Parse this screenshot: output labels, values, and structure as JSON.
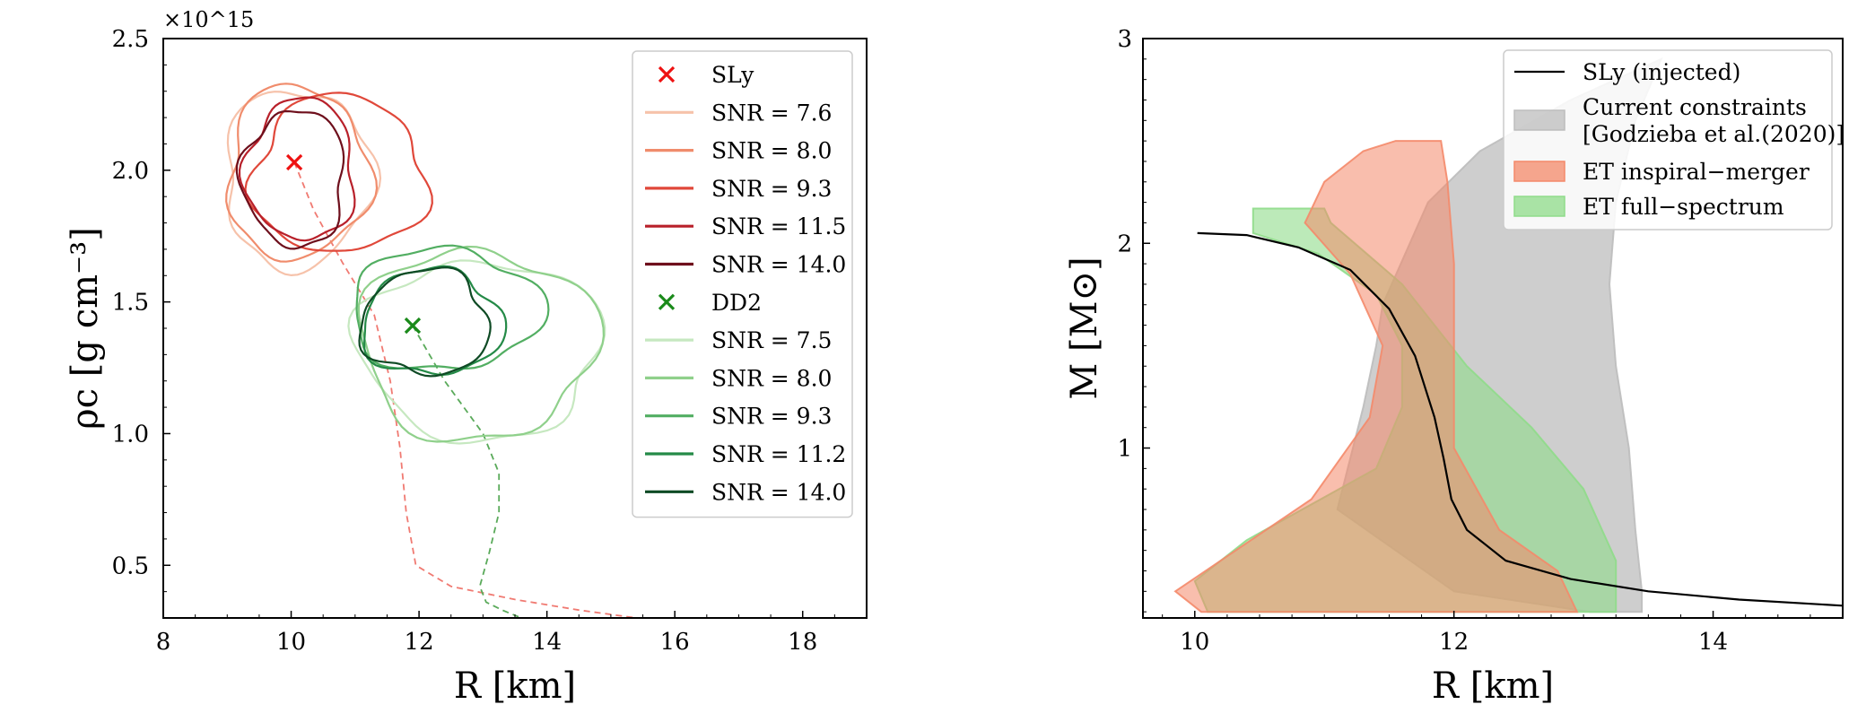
{
  "chart_data": [
    {
      "type": "line",
      "panel": "left",
      "xlabel": "R [km]",
      "ylabel": "ρc [g cm⁻³]",
      "multiplier": "×10^15",
      "xlim": [
        8,
        19
      ],
      "ylim": [
        0.3,
        2.5
      ],
      "xticks": [
        8,
        10,
        12,
        14,
        16,
        18
      ],
      "yticks": [
        0.5,
        1.0,
        1.5,
        2.0,
        2.5
      ],
      "legend_position": "upper right",
      "injected": [
        {
          "name": "SLy",
          "x": 10.05,
          "y": 2.03,
          "color": "#ee1111"
        },
        {
          "name": "DD2",
          "x": 11.9,
          "y": 1.41,
          "color": "#1a8a1a"
        }
      ],
      "legend": [
        {
          "label": "SLy",
          "kind": "marker",
          "color": "#ee1111"
        },
        {
          "label": "SNR = 7.6",
          "kind": "line",
          "color": "#f6c2aa"
        },
        {
          "label": "SNR = 8.0",
          "kind": "line",
          "color": "#f08c6c"
        },
        {
          "label": "SNR = 9.3",
          "kind": "line",
          "color": "#e0483a"
        },
        {
          "label": "SNR = 11.5",
          "kind": "line",
          "color": "#b8202a"
        },
        {
          "label": "SNR = 14.0",
          "kind": "line",
          "color": "#6e0f1c"
        },
        {
          "label": "DD2",
          "kind": "marker",
          "color": "#1a8a1a"
        },
        {
          "label": "SNR = 7.5",
          "kind": "line",
          "color": "#c6e8c0"
        },
        {
          "label": "SNR = 8.0",
          "kind": "line",
          "color": "#8fd08b"
        },
        {
          "label": "SNR = 9.3",
          "kind": "line",
          "color": "#52ae62"
        },
        {
          "label": "SNR = 11.2",
          "kind": "line",
          "color": "#248a47"
        },
        {
          "label": "SNR = 14.0",
          "kind": "line",
          "color": "#0e4a24"
        }
      ],
      "contours": [
        {
          "series": "SLy SNR = 7.6",
          "color": "#f6c2aa",
          "cx": 10.1,
          "cy": 1.97,
          "rx": 1.15,
          "ry": 0.34,
          "seed": 1
        },
        {
          "series": "SLy SNR = 8.0",
          "color": "#f08c6c",
          "cx": 10.1,
          "cy": 1.99,
          "rx": 1.1,
          "ry": 0.33,
          "seed": 2
        },
        {
          "series": "SLy SNR = 9.3",
          "color": "#e0483a",
          "cx": 10.75,
          "cy": 1.98,
          "rx": 1.35,
          "ry": 0.3,
          "seed": 3
        },
        {
          "series": "SLy SNR = 11.5",
          "color": "#b8202a",
          "cx": 10.15,
          "cy": 2.0,
          "rx": 0.85,
          "ry": 0.27,
          "seed": 4
        },
        {
          "series": "SLy SNR = 14.0",
          "color": "#6e0f1c",
          "cx": 10.05,
          "cy": 1.97,
          "rx": 0.8,
          "ry": 0.26,
          "seed": 5
        },
        {
          "series": "DD2 SNR = 7.5",
          "color": "#c6e8c0",
          "cx": 12.95,
          "cy": 1.32,
          "rx": 1.9,
          "ry": 0.34,
          "seed": 6
        },
        {
          "series": "DD2 SNR = 8.0",
          "color": "#8fd08b",
          "cx": 12.9,
          "cy": 1.34,
          "rx": 1.85,
          "ry": 0.36,
          "seed": 7
        },
        {
          "series": "DD2 SNR = 9.3",
          "color": "#52ae62",
          "cx": 12.4,
          "cy": 1.47,
          "rx": 1.5,
          "ry": 0.23,
          "seed": 8
        },
        {
          "series": "DD2 SNR = 11.2",
          "color": "#248a47",
          "cx": 12.2,
          "cy": 1.42,
          "rx": 1.1,
          "ry": 0.2,
          "seed": 9
        },
        {
          "series": "DD2 SNR = 14.0",
          "color": "#0e4a24",
          "cx": 12.1,
          "cy": 1.42,
          "rx": 1.0,
          "ry": 0.2,
          "seed": 10
        }
      ],
      "dashed_tracks": [
        {
          "series": "SLy",
          "color": "#f07a72",
          "x": [
            10.05,
            10.35,
            10.8,
            11.3,
            11.55,
            11.7,
            11.8,
            11.95,
            12.5,
            13.5,
            14.5,
            15.4
          ],
          "y": [
            2.03,
            1.85,
            1.65,
            1.45,
            1.2,
            0.95,
            0.7,
            0.5,
            0.42,
            0.37,
            0.33,
            0.3
          ]
        },
        {
          "series": "DD2",
          "color": "#5aaa5a",
          "x": [
            11.9,
            12.4,
            13.0,
            13.25,
            13.25,
            13.1,
            12.95,
            13.05,
            13.3,
            13.6
          ],
          "y": [
            1.41,
            1.2,
            1.0,
            0.85,
            0.7,
            0.55,
            0.42,
            0.36,
            0.33,
            0.3
          ]
        }
      ]
    },
    {
      "type": "area",
      "panel": "right",
      "xlabel": "R [km]",
      "ylabel": "M [M⊙]",
      "xlim": [
        9.6,
        15.0
      ],
      "ylim": [
        0.17,
        3.0
      ],
      "xticks": [
        10,
        12,
        14
      ],
      "yticks": [
        1,
        2,
        3
      ],
      "legend_position": "upper right",
      "legend": [
        {
          "label": "SLy (injected)",
          "kind": "line",
          "color": "#000000"
        },
        {
          "label": "Current constraints",
          "label2": "[Godzieba et al.(2020)]",
          "kind": "patch",
          "color": "#bdbdbd"
        },
        {
          "label": "ET inspiral−merger",
          "kind": "patch",
          "color": "#f4896a"
        },
        {
          "label": "ET full−spectrum",
          "kind": "patch",
          "color": "#8fdc8a"
        }
      ],
      "bands": [
        {
          "series": "Current constraints",
          "color": "#bdbdbd",
          "opacity": 0.75,
          "left": [
            [
              13.05,
              0.2
            ],
            [
              12.0,
              0.3
            ],
            [
              11.1,
              0.7
            ],
            [
              11.3,
              1.2
            ],
            [
              11.4,
              1.5
            ],
            [
              11.45,
              1.7
            ],
            [
              11.8,
              2.2
            ],
            [
              12.2,
              2.45
            ],
            [
              12.9,
              2.7
            ],
            [
              13.6,
              2.9
            ]
          ],
          "right": [
            [
              13.6,
              2.9
            ],
            [
              13.4,
              2.6
            ],
            [
              13.25,
              2.2
            ],
            [
              13.2,
              1.8
            ],
            [
              13.25,
              1.4
            ],
            [
              13.35,
              1.0
            ],
            [
              13.4,
              0.6
            ],
            [
              13.45,
              0.3
            ],
            [
              13.45,
              0.2
            ]
          ]
        },
        {
          "series": "ET full−spectrum",
          "color": "#8fdc8a",
          "opacity": 0.6,
          "left": [
            [
              10.1,
              0.2
            ],
            [
              10.0,
              0.35
            ],
            [
              10.4,
              0.55
            ],
            [
              11.4,
              0.9
            ],
            [
              11.6,
              1.2
            ],
            [
              11.6,
              1.5
            ],
            [
              11.4,
              1.75
            ],
            [
              10.95,
              1.95
            ],
            [
              10.45,
              2.05
            ],
            [
              10.45,
              2.17
            ],
            [
              11.0,
              2.17
            ],
            [
              11.05,
              2.1
            ]
          ],
          "right": [
            [
              11.05,
              2.1
            ],
            [
              11.6,
              1.8
            ],
            [
              12.1,
              1.4
            ],
            [
              12.6,
              1.1
            ],
            [
              13.0,
              0.8
            ],
            [
              13.25,
              0.45
            ],
            [
              13.25,
              0.2
            ]
          ]
        },
        {
          "series": "ET inspiral−merger",
          "color": "#f4896a",
          "opacity": 0.55,
          "left": [
            [
              10.05,
              0.2
            ],
            [
              9.85,
              0.3
            ],
            [
              10.2,
              0.45
            ],
            [
              10.9,
              0.75
            ],
            [
              11.35,
              1.15
            ],
            [
              11.45,
              1.5
            ],
            [
              11.2,
              1.85
            ],
            [
              10.85,
              2.1
            ],
            [
              11.0,
              2.3
            ],
            [
              11.3,
              2.45
            ],
            [
              11.55,
              2.5
            ],
            [
              11.9,
              2.5
            ]
          ],
          "right": [
            [
              11.9,
              2.5
            ],
            [
              11.95,
              2.3
            ],
            [
              12.0,
              1.9
            ],
            [
              12.0,
              1.4
            ],
            [
              12.0,
              1.0
            ],
            [
              12.35,
              0.6
            ],
            [
              12.8,
              0.4
            ],
            [
              12.95,
              0.2
            ]
          ]
        }
      ],
      "sly_curve": {
        "name": "SLy (injected)",
        "R": [
          10.02,
          10.4,
          10.8,
          11.2,
          11.5,
          11.7,
          11.85,
          11.92,
          11.98,
          12.1,
          12.4,
          12.9,
          13.5,
          14.2,
          15.0
        ],
        "M": [
          2.05,
          2.04,
          1.98,
          1.87,
          1.68,
          1.45,
          1.15,
          0.95,
          0.75,
          0.6,
          0.45,
          0.36,
          0.3,
          0.26,
          0.23
        ]
      }
    }
  ]
}
